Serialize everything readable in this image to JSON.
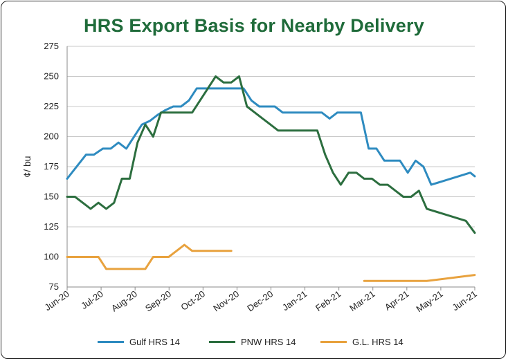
{
  "chart_data": {
    "type": "line",
    "title": "HRS Export Basis for Nearby Delivery",
    "ylabel": "¢/ bu",
    "xlabel": "",
    "ylim": [
      75,
      275
    ],
    "yticks": [
      75,
      100,
      125,
      150,
      175,
      200,
      225,
      250,
      275
    ],
    "x_tick_labels": [
      "Jun-20",
      "Jul-20",
      "Aug-20",
      "Sep-20",
      "Oct-20",
      "Nov-20",
      "Dec-20",
      "Jan-21",
      "Feb-21",
      "Mar-21",
      "Apr-21",
      "May-21",
      "Jun-21"
    ],
    "xlim": [
      "2020-06-01",
      "2021-06-01"
    ],
    "grid": true,
    "legend_position": "bottom",
    "series": [
      {
        "name": "Gulf HRS 14",
        "color": "#2e8bc0",
        "points": [
          [
            "2020-06-01",
            165
          ],
          [
            "2020-06-18",
            185
          ],
          [
            "2020-06-25",
            185
          ],
          [
            "2020-07-03",
            190
          ],
          [
            "2020-07-10",
            190
          ],
          [
            "2020-07-17",
            195
          ],
          [
            "2020-07-24",
            190
          ],
          [
            "2020-07-31",
            200
          ],
          [
            "2020-08-07",
            210
          ],
          [
            "2020-08-14",
            213
          ],
          [
            "2020-08-21",
            218
          ],
          [
            "2020-08-28",
            222
          ],
          [
            "2020-09-04",
            225
          ],
          [
            "2020-09-11",
            225
          ],
          [
            "2020-09-18",
            230
          ],
          [
            "2020-09-25",
            240
          ],
          [
            "2020-10-30",
            240
          ],
          [
            "2020-11-06",
            240
          ],
          [
            "2020-11-13",
            230
          ],
          [
            "2020-11-20",
            225
          ],
          [
            "2020-12-04",
            225
          ],
          [
            "2020-12-11",
            220
          ],
          [
            "2021-01-15",
            220
          ],
          [
            "2021-01-22",
            215
          ],
          [
            "2021-01-29",
            220
          ],
          [
            "2021-02-19",
            220
          ],
          [
            "2021-02-26",
            190
          ],
          [
            "2021-03-05",
            190
          ],
          [
            "2021-03-12",
            180
          ],
          [
            "2021-03-26",
            180
          ],
          [
            "2021-04-02",
            170
          ],
          [
            "2021-04-09",
            180
          ],
          [
            "2021-04-16",
            175
          ],
          [
            "2021-04-23",
            160
          ],
          [
            "2021-05-28",
            170
          ],
          [
            "2021-06-01",
            167
          ]
        ]
      },
      {
        "name": "PNW HRS 14",
        "color": "#2c6e3f",
        "points": [
          [
            "2020-06-01",
            150
          ],
          [
            "2020-06-08",
            150
          ],
          [
            "2020-06-22",
            140
          ],
          [
            "2020-06-29",
            145
          ],
          [
            "2020-07-06",
            140
          ],
          [
            "2020-07-13",
            145
          ],
          [
            "2020-07-20",
            165
          ],
          [
            "2020-07-27",
            165
          ],
          [
            "2020-08-03",
            195
          ],
          [
            "2020-08-10",
            210
          ],
          [
            "2020-08-17",
            200
          ],
          [
            "2020-08-24",
            220
          ],
          [
            "2020-09-21",
            220
          ],
          [
            "2020-09-28",
            230
          ],
          [
            "2020-10-05",
            240
          ],
          [
            "2020-10-12",
            250
          ],
          [
            "2020-10-19",
            245
          ],
          [
            "2020-10-26",
            245
          ],
          [
            "2020-11-02",
            250
          ],
          [
            "2020-11-09",
            225
          ],
          [
            "2020-11-16",
            220
          ],
          [
            "2020-11-23",
            215
          ],
          [
            "2020-11-30",
            210
          ],
          [
            "2020-12-07",
            205
          ],
          [
            "2021-01-04",
            205
          ],
          [
            "2021-01-11",
            205
          ],
          [
            "2021-01-18",
            185
          ],
          [
            "2021-01-25",
            170
          ],
          [
            "2021-02-01",
            160
          ],
          [
            "2021-02-08",
            170
          ],
          [
            "2021-02-15",
            170
          ],
          [
            "2021-02-22",
            165
          ],
          [
            "2021-03-01",
            165
          ],
          [
            "2021-03-08",
            160
          ],
          [
            "2021-03-15",
            160
          ],
          [
            "2021-03-22",
            155
          ],
          [
            "2021-03-29",
            150
          ],
          [
            "2021-04-05",
            150
          ],
          [
            "2021-04-12",
            155
          ],
          [
            "2021-04-19",
            140
          ],
          [
            "2021-05-24",
            130
          ],
          [
            "2021-06-01",
            120
          ]
        ]
      },
      {
        "name": "G.L. HRS 14",
        "color": "#e8a23e",
        "segments": [
          [
            [
              "2020-06-01",
              100
            ],
            [
              "2020-06-29",
              100
            ],
            [
              "2020-07-06",
              90
            ],
            [
              "2020-08-10",
              90
            ],
            [
              "2020-08-17",
              100
            ],
            [
              "2020-08-31",
              100
            ],
            [
              "2020-09-07",
              105
            ],
            [
              "2020-09-14",
              110
            ],
            [
              "2020-09-21",
              105
            ],
            [
              "2020-10-26",
              105
            ]
          ],
          [
            [
              "2021-02-22",
              80
            ],
            [
              "2021-04-19",
              80
            ],
            [
              "2021-06-01",
              85
            ]
          ]
        ]
      }
    ]
  }
}
